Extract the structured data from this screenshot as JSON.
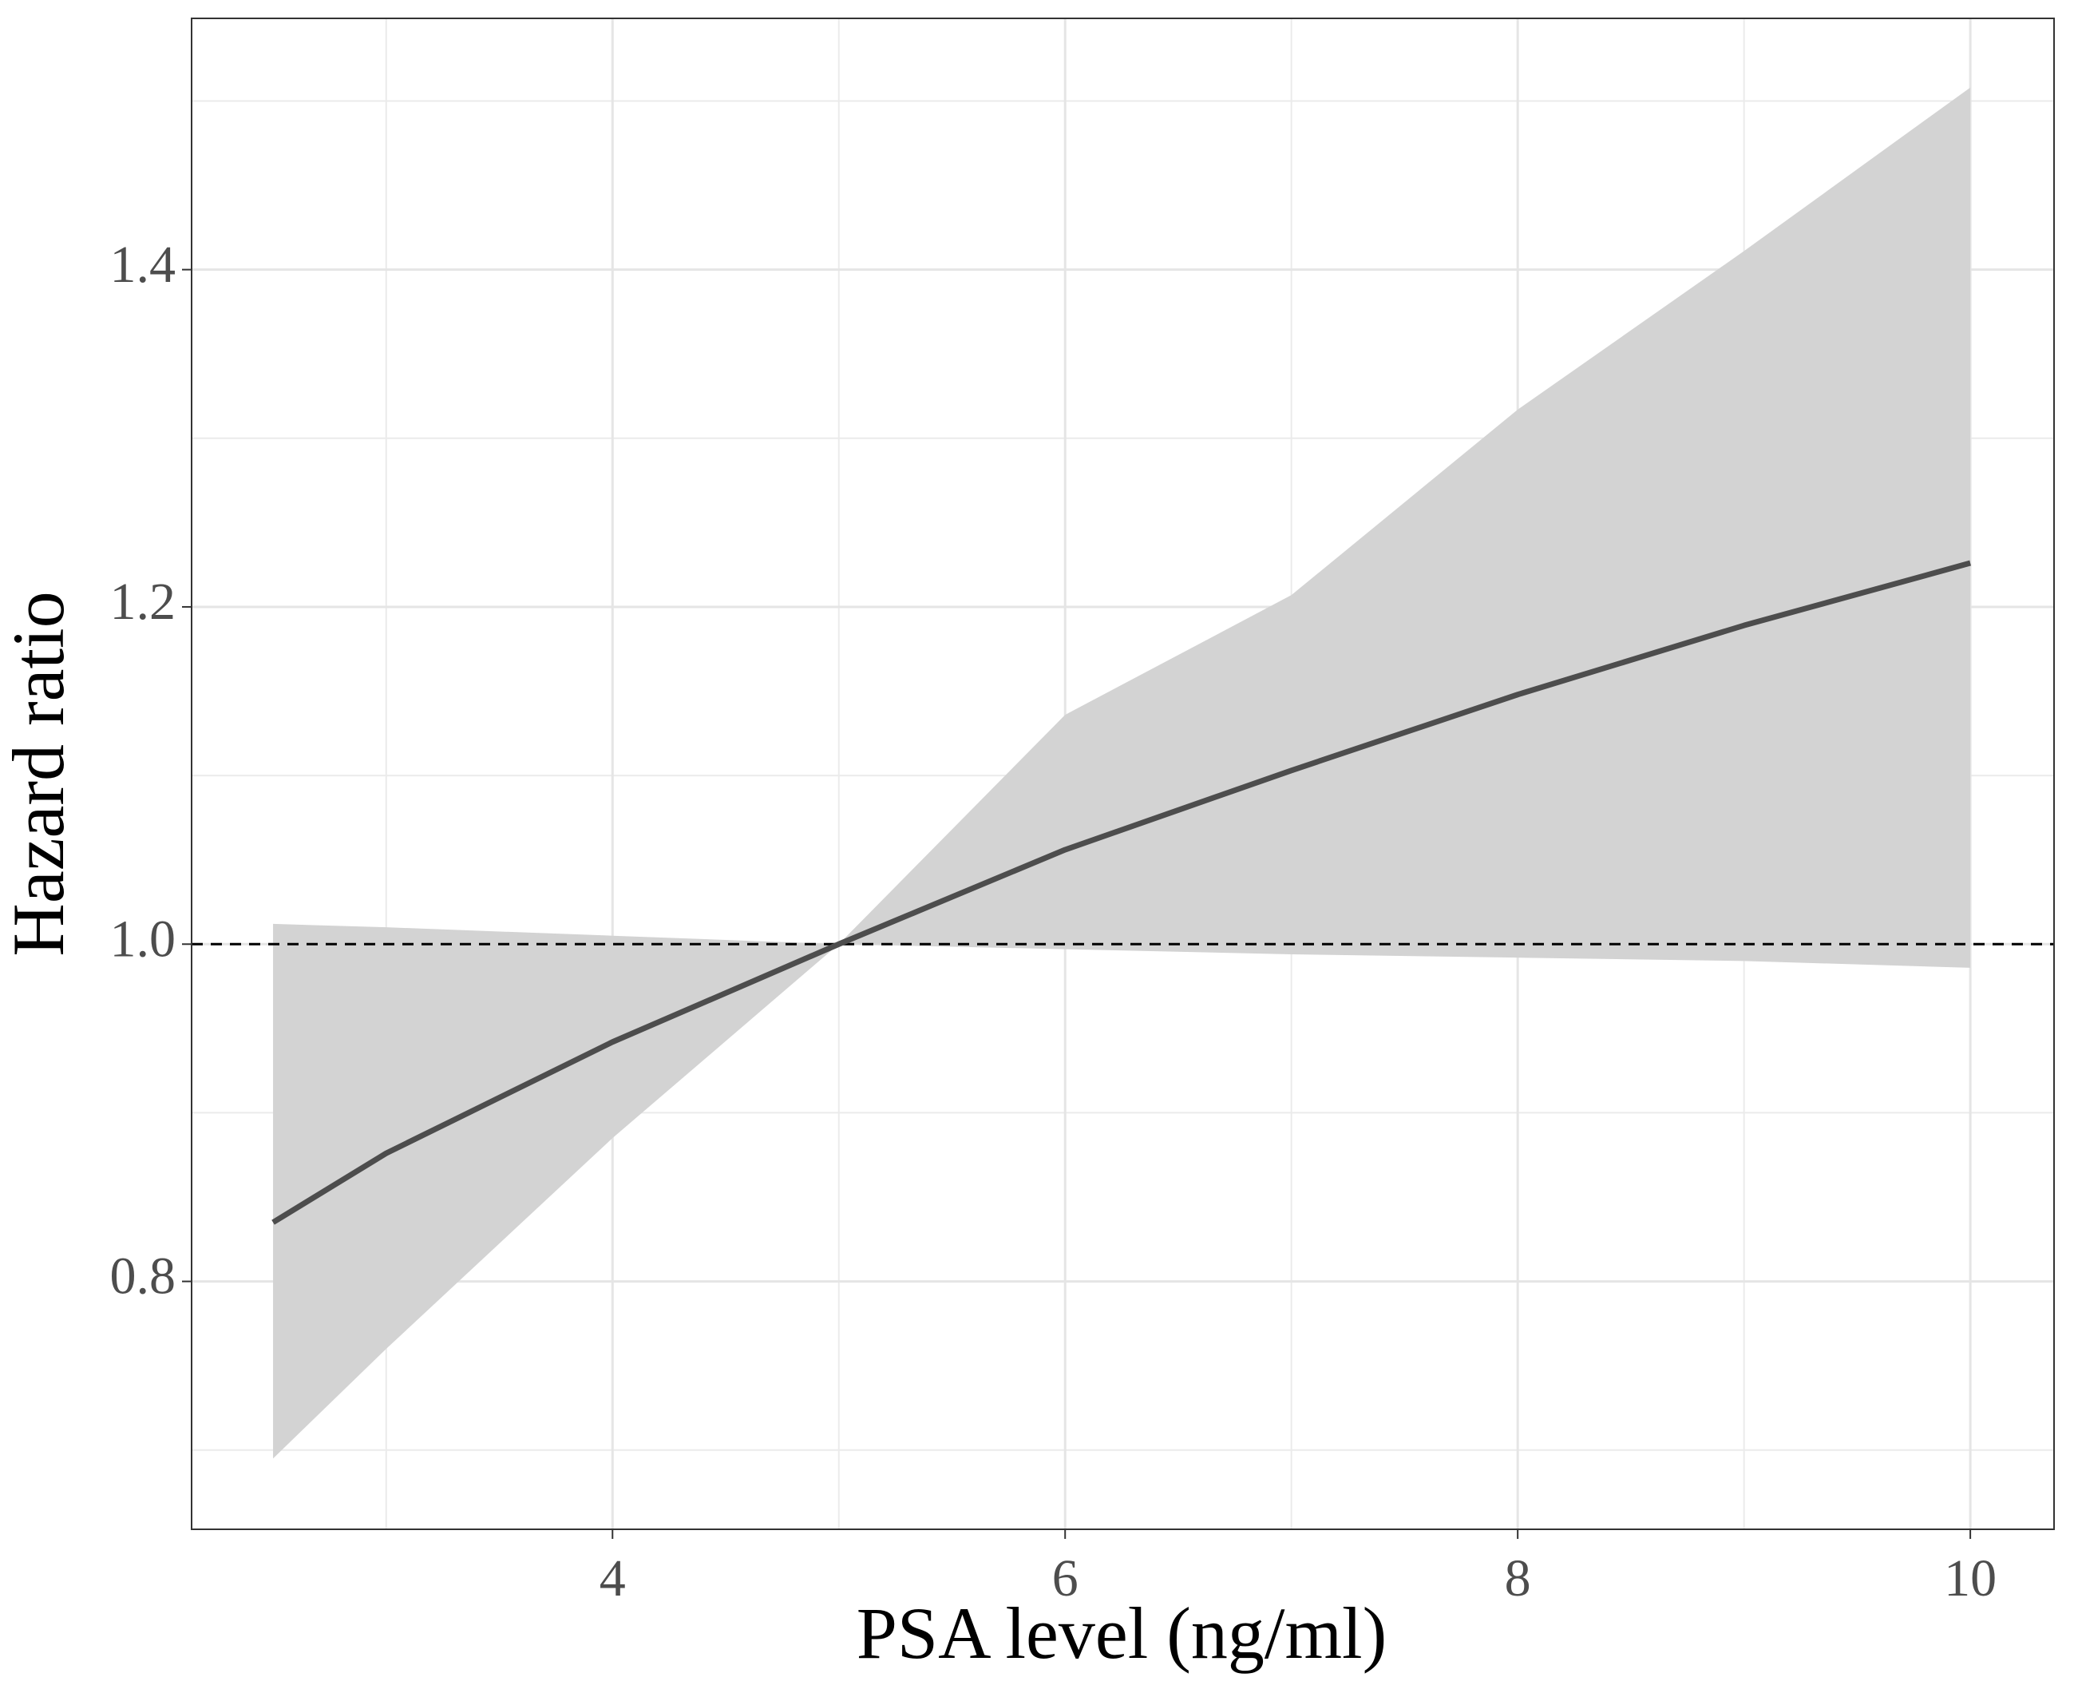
{
  "chart_data": {
    "type": "line",
    "x_label": "PSA level (ng/ml)",
    "y_label": "Hazard ratio",
    "x": [
      2.5,
      3,
      4,
      5,
      6,
      7,
      8,
      9,
      10
    ],
    "values": [
      0.835,
      0.876,
      0.942,
      1.0,
      1.056,
      1.103,
      1.148,
      1.189,
      1.226
    ],
    "lower": [
      0.695,
      0.76,
      0.885,
      1.0,
      0.997,
      0.994,
      0.992,
      0.99,
      0.986
    ],
    "upper": [
      1.012,
      1.01,
      1.005,
      1.0,
      1.136,
      1.207,
      1.317,
      1.411,
      1.508
    ],
    "color": "#4d4d4d",
    "band_color": "#d3d3d3",
    "hline": 1,
    "xlim": [
      2.14,
      10.37
    ],
    "ylim": [
      0.653,
      1.549
    ],
    "xticks": [
      4,
      6,
      8,
      10
    ],
    "yticks": [
      0.8,
      {
        "value": 1,
        "label": "1.0"
      },
      1.2,
      1.4
    ],
    "x_minor_ticks": [
      3,
      5,
      7,
      9
    ],
    "y_minor_ticks": [
      0.7,
      0.9,
      1.1,
      1.3,
      1.5
    ],
    "grid": true
  }
}
